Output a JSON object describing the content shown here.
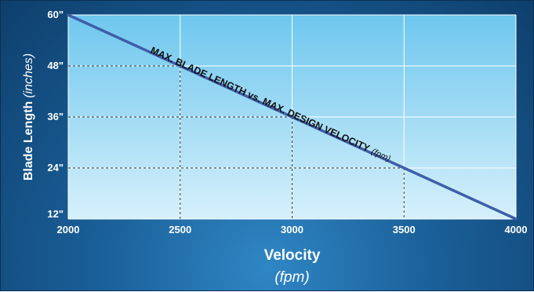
{
  "chart_data": {
    "type": "line",
    "xlabel": "Velocity",
    "xunit": "(fpm)",
    "ylabel": "Blade Length",
    "yunit": "(inches)",
    "x_ticks": [
      2000,
      2500,
      3000,
      3500,
      4000
    ],
    "x_tick_labels": [
      "2000",
      "2500",
      "3000",
      "3500",
      "4000"
    ],
    "y_ticks": [
      12,
      24,
      36,
      48,
      60
    ],
    "y_tick_labels": [
      "12\"",
      "24\"",
      "36\"",
      "48\"",
      "60\""
    ],
    "xlim": [
      2000,
      4000
    ],
    "ylim": [
      12,
      60
    ],
    "grid": true,
    "annotation": {
      "text": "MAX. BLADE LENGTH vs. MAX. DESIGN VELOCITY",
      "unit": "(fpm)"
    },
    "series": [
      {
        "x": [
          2000,
          4000
        ],
        "y": [
          60,
          12
        ]
      }
    ],
    "reference_points": [
      {
        "x": 2500,
        "y": 48
      },
      {
        "x": 3000,
        "y": 36
      },
      {
        "x": 3500,
        "y": 24
      }
    ],
    "colors": {
      "line": "#3f5ea9",
      "plot_bg_top": "#6ec7ee",
      "plot_bg_bottom": "#d6f0fb",
      "frame": "#1a5f98",
      "guide": "#3a3a3a"
    }
  }
}
